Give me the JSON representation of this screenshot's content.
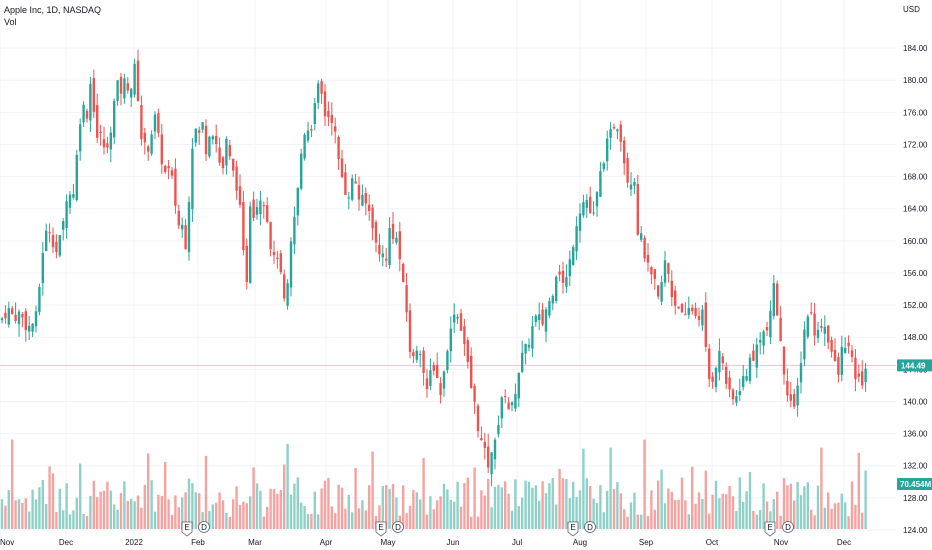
{
  "header": {
    "title": "Apple Inc, 1D, NASDAQ",
    "volume_label": "Vol"
  },
  "axis": {
    "currency": "USD"
  },
  "colors": {
    "up": "#26a69a",
    "down": "#ef5350",
    "vol_up": "#8fd1c8",
    "vol_down": "#f5a3a1",
    "grid": "#f0f3fa",
    "axis_text": "#131722",
    "last_line": "#26a69a"
  },
  "chart_data": {
    "type": "candlestick",
    "symbol": "Apple Inc",
    "interval": "1D",
    "exchange": "NASDAQ",
    "y_ticks": [
      124,
      128,
      132,
      136,
      140,
      144,
      148,
      152,
      156,
      160,
      164,
      168,
      172,
      176,
      180,
      184
    ],
    "ylim": [
      123,
      187.5
    ],
    "last_price": "144.49",
    "last_volume": "70.454M",
    "x_tick_labels": [
      "Nov",
      "Dec",
      "2022",
      "Feb",
      "Mar",
      "Apr",
      "May",
      "Jun",
      "Jul",
      "Aug",
      "Sep",
      "Oct",
      "Nov",
      "Dec"
    ],
    "event_markers": [
      {
        "type": "E",
        "near": "Jan 2022"
      },
      {
        "type": "D",
        "near": "Feb 2022"
      },
      {
        "type": "E",
        "near": "Apr 2022"
      },
      {
        "type": "D",
        "near": "May 2022"
      },
      {
        "type": "E",
        "near": "Jul 2022"
      },
      {
        "type": "D",
        "near": "Aug 2022"
      },
      {
        "type": "E",
        "near": "Oct 2022"
      },
      {
        "type": "D",
        "near": "Nov 2022"
      }
    ],
    "close_path": [
      [
        0,
        150.0
      ],
      [
        8,
        151.5
      ],
      [
        14,
        150.5
      ],
      [
        20,
        151.0
      ],
      [
        26,
        149.5
      ],
      [
        30,
        149.2
      ],
      [
        36,
        150.5
      ],
      [
        40,
        155.0
      ],
      [
        44,
        160.5
      ],
      [
        50,
        161.5
      ],
      [
        56,
        158.5
      ],
      [
        62,
        161.0
      ],
      [
        68,
        167.0
      ],
      [
        72,
        164.5
      ],
      [
        78,
        172.0
      ],
      [
        82,
        178.0
      ],
      [
        86,
        174.5
      ],
      [
        90,
        180.0
      ],
      [
        94,
        176.5
      ],
      [
        98,
        172.0
      ],
      [
        102,
        173.5
      ],
      [
        106,
        170.0
      ],
      [
        110,
        173.5
      ],
      [
        114,
        177.0
      ],
      [
        118,
        179.5
      ],
      [
        122,
        178.5
      ],
      [
        126,
        180.5
      ],
      [
        130,
        178.0
      ],
      [
        134,
        182.0
      ],
      [
        138,
        178.0
      ],
      [
        142,
        172.0
      ],
      [
        146,
        171.5
      ],
      [
        150,
        172.0
      ],
      [
        154,
        176.0
      ],
      [
        158,
        173.0
      ],
      [
        162,
        170.0
      ],
      [
        166,
        168.0
      ],
      [
        170,
        169.0
      ],
      [
        174,
        166.0
      ],
      [
        178,
        162.0
      ],
      [
        182,
        162.0
      ],
      [
        186,
        159.5
      ],
      [
        190,
        167.5
      ],
      [
        194,
        175.0
      ],
      [
        198,
        172.5
      ],
      [
        202,
        175.0
      ],
      [
        206,
        171.5
      ],
      [
        210,
        174.0
      ],
      [
        214,
        173.5
      ],
      [
        218,
        171.0
      ],
      [
        222,
        168.0
      ],
      [
        226,
        172.5
      ],
      [
        230,
        170.0
      ],
      [
        234,
        168.0
      ],
      [
        238,
        166.5
      ],
      [
        242,
        161.0
      ],
      [
        246,
        153.0
      ],
      [
        250,
        165.0
      ],
      [
        254,
        163.5
      ],
      [
        258,
        165.0
      ],
      [
        262,
        166.0
      ],
      [
        266,
        164.0
      ],
      [
        270,
        160.0
      ],
      [
        274,
        157.5
      ],
      [
        278,
        158.5
      ],
      [
        282,
        154.0
      ],
      [
        286,
        151.0
      ],
      [
        290,
        158.5
      ],
      [
        294,
        162.5
      ],
      [
        298,
        166.5
      ],
      [
        302,
        172.0
      ],
      [
        306,
        174.5
      ],
      [
        310,
        173.5
      ],
      [
        314,
        176.0
      ],
      [
        318,
        179.0
      ],
      [
        322,
        178.0
      ],
      [
        326,
        175.0
      ],
      [
        330,
        176.0
      ],
      [
        334,
        174.5
      ],
      [
        338,
        170.0
      ],
      [
        342,
        168.0
      ],
      [
        346,
        166.0
      ],
      [
        350,
        166.0
      ],
      [
        354,
        168.5
      ],
      [
        358,
        165.5
      ],
      [
        362,
        165.0
      ],
      [
        366,
        164.5
      ],
      [
        370,
        163.5
      ],
      [
        374,
        161.5
      ],
      [
        378,
        157.5
      ],
      [
        382,
        159.5
      ],
      [
        386,
        157.0
      ],
      [
        390,
        162.0
      ],
      [
        394,
        160.5
      ],
      [
        398,
        160.0
      ],
      [
        402,
        155.0
      ],
      [
        406,
        152.0
      ],
      [
        410,
        146.5
      ],
      [
        414,
        145.0
      ],
      [
        418,
        147.5
      ],
      [
        422,
        146.0
      ],
      [
        426,
        140.0
      ],
      [
        430,
        143.5
      ],
      [
        434,
        144.5
      ],
      [
        438,
        142.5
      ],
      [
        442,
        140.5
      ],
      [
        446,
        146.5
      ],
      [
        450,
        148.0
      ],
      [
        454,
        151.5
      ],
      [
        458,
        150.5
      ],
      [
        462,
        149.0
      ],
      [
        466,
        146.0
      ],
      [
        470,
        142.5
      ],
      [
        474,
        140.0
      ],
      [
        478,
        137.0
      ],
      [
        482,
        134.5
      ],
      [
        486,
        133.0
      ],
      [
        490,
        131.5
      ],
      [
        494,
        135.5
      ],
      [
        498,
        137.0
      ],
      [
        502,
        140.0
      ],
      [
        506,
        141.5
      ],
      [
        510,
        138.0
      ],
      [
        514,
        140.5
      ],
      [
        518,
        143.5
      ],
      [
        522,
        145.5
      ],
      [
        526,
        146.5
      ],
      [
        530,
        148.0
      ],
      [
        534,
        150.0
      ],
      [
        538,
        150.5
      ],
      [
        542,
        149.5
      ],
      [
        546,
        151.5
      ],
      [
        550,
        152.5
      ],
      [
        554,
        154.5
      ],
      [
        558,
        157.5
      ],
      [
        562,
        154.5
      ],
      [
        566,
        155.0
      ],
      [
        570,
        157.5
      ],
      [
        574,
        160.5
      ],
      [
        578,
        163.5
      ],
      [
        582,
        164.5
      ],
      [
        586,
        165.5
      ],
      [
        590,
        163.5
      ],
      [
        594,
        163.0
      ],
      [
        598,
        166.5
      ],
      [
        602,
        169.5
      ],
      [
        606,
        171.5
      ],
      [
        610,
        173.0
      ],
      [
        614,
        174.5
      ],
      [
        618,
        174.5
      ],
      [
        622,
        172.5
      ],
      [
        626,
        168.0
      ],
      [
        630,
        167.5
      ],
      [
        634,
        168.5
      ],
      [
        638,
        161.0
      ],
      [
        642,
        160.0
      ],
      [
        646,
        157.5
      ],
      [
        650,
        155.5
      ],
      [
        654,
        155.0
      ],
      [
        658,
        152.5
      ],
      [
        662,
        155.0
      ],
      [
        666,
        158.0
      ],
      [
        670,
        154.5
      ],
      [
        674,
        152.0
      ],
      [
        678,
        152.5
      ],
      [
        682,
        150.5
      ],
      [
        686,
        150.0
      ],
      [
        690,
        152.0
      ],
      [
        694,
        151.0
      ],
      [
        698,
        150.5
      ],
      [
        702,
        151.5
      ],
      [
        706,
        146.0
      ],
      [
        710,
        142.0
      ],
      [
        714,
        143.5
      ],
      [
        718,
        146.0
      ],
      [
        722,
        145.5
      ],
      [
        726,
        142.5
      ],
      [
        730,
        140.5
      ],
      [
        734,
        140.0
      ],
      [
        738,
        141.0
      ],
      [
        742,
        143.0
      ],
      [
        746,
        142.5
      ],
      [
        750,
        146.0
      ],
      [
        754,
        144.5
      ],
      [
        758,
        148.0
      ],
      [
        762,
        148.5
      ],
      [
        766,
        148.5
      ],
      [
        770,
        150.0
      ],
      [
        774,
        155.0
      ],
      [
        778,
        150.0
      ],
      [
        782,
        145.5
      ],
      [
        786,
        142.0
      ],
      [
        790,
        140.5
      ],
      [
        794,
        138.5
      ],
      [
        798,
        142.0
      ],
      [
        802,
        146.5
      ],
      [
        806,
        150.5
      ],
      [
        810,
        151.5
      ],
      [
        814,
        149.0
      ],
      [
        818,
        148.5
      ],
      [
        822,
        150.0
      ],
      [
        826,
        149.0
      ],
      [
        830,
        147.0
      ],
      [
        834,
        145.0
      ],
      [
        838,
        143.0
      ],
      [
        842,
        146.5
      ],
      [
        846,
        147.5
      ],
      [
        850,
        146.0
      ],
      [
        854,
        143.5
      ],
      [
        858,
        142.5
      ],
      [
        862,
        142.5
      ],
      [
        866,
        144.49
      ]
    ]
  }
}
